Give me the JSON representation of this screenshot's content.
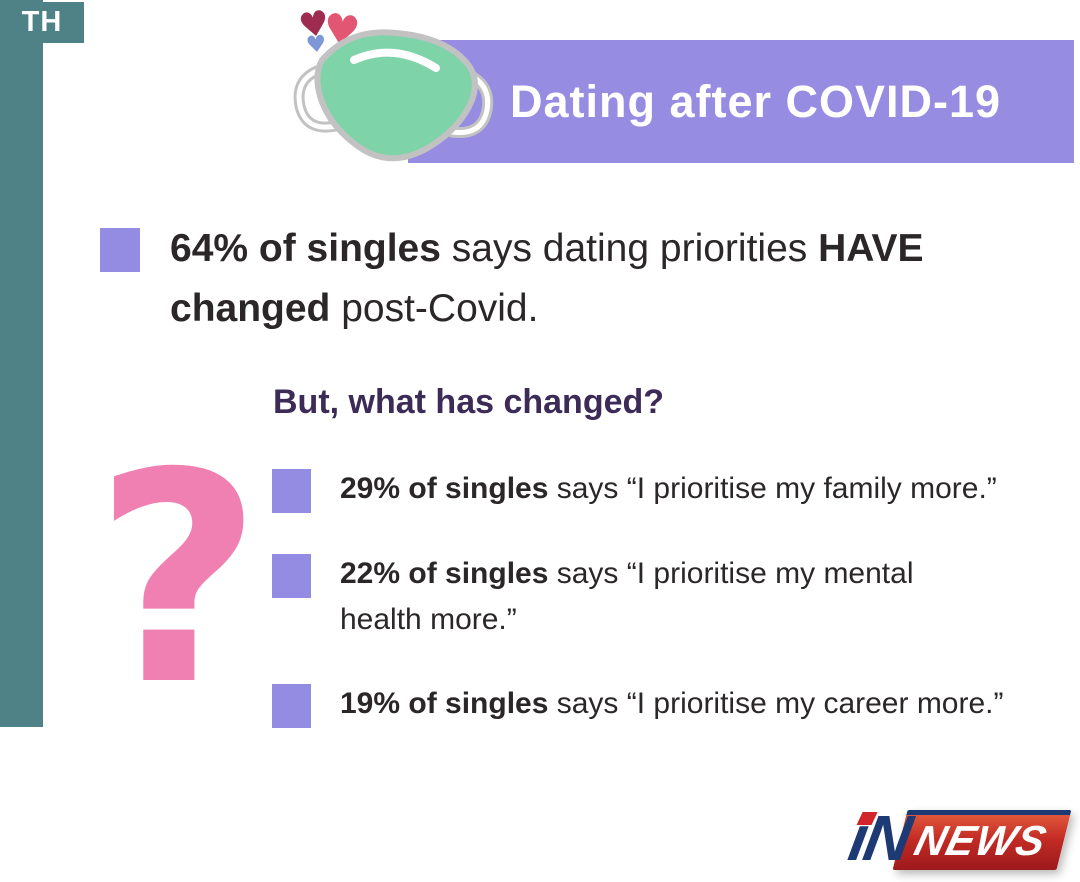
{
  "colors": {
    "teal": "#4e8286",
    "banner_purple": "#968de2",
    "bullet_purple": "#948be3",
    "heading_purple": "#3d2b57",
    "pink": "#f07fb2",
    "text_dark": "#2b2728",
    "mask_green": "#7fd3a9",
    "heart_dark": "#9e2b50",
    "heart_pink": "#e25673",
    "heart_blue": "#7e97d9",
    "logo_navy": "#1d3a74",
    "logo_red": "#d1262b"
  },
  "branding": {
    "th_label": "TH"
  },
  "header": {
    "title": "Dating after COVID-19",
    "heart_glyph": "♥"
  },
  "main_stat": {
    "lines": [
      [
        {
          "t": "64% of singles",
          "b": true
        },
        {
          "t": " says dating priorities ",
          "b": false
        },
        {
          "t": "HAVE",
          "b": true
        }
      ],
      [
        {
          "t": "changed",
          "b": true
        },
        {
          "t": " post-Covid.",
          "b": false
        }
      ]
    ]
  },
  "question": {
    "heading": "But, what has changed?",
    "mark": "?"
  },
  "bullets": [
    {
      "lines": [
        [
          {
            "t": "29% of singles",
            "b": true
          },
          {
            "t": " says “I prioritise my family more.”",
            "b": false
          }
        ]
      ]
    },
    {
      "lines": [
        [
          {
            "t": "22% of singles",
            "b": true
          },
          {
            "t": " says “I prioritise my mental",
            "b": false
          }
        ],
        [
          {
            "t": "health more.”",
            "b": false
          }
        ]
      ]
    },
    {
      "lines": [
        [
          {
            "t": "19% of singles",
            "b": true
          },
          {
            "t": " says “I prioritise my career more.”",
            "b": false
          }
        ]
      ]
    }
  ],
  "logo": {
    "part1": "iN",
    "part2": "NEWS"
  },
  "chart_data": {
    "type": "table",
    "title": "Dating after COVID-19",
    "main_stat": {
      "label": "singles who say dating priorities HAVE changed post-Covid",
      "value": 64,
      "unit": "%"
    },
    "question": "But, what has changed?",
    "categories": [
      "I prioritise my family more",
      "I prioritise my mental health more",
      "I prioritise my career more"
    ],
    "values": [
      29,
      22,
      19
    ],
    "unit": "% of singles"
  }
}
